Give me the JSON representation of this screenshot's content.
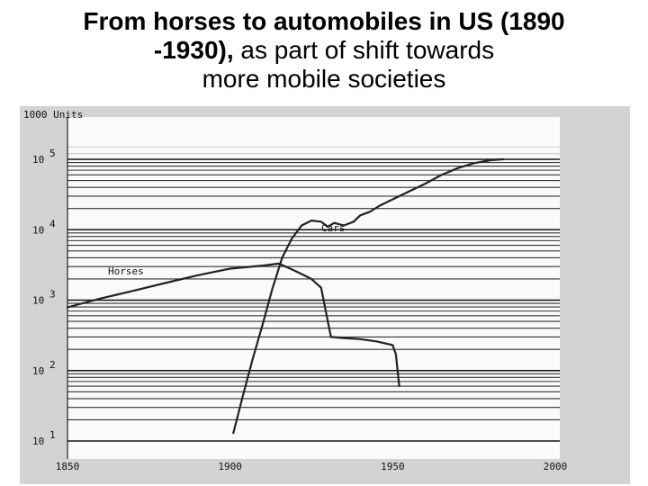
{
  "slide": {
    "title_bold_1": "From horses to automobiles in US (1890",
    "title_bold_2": "-1930),",
    "title_rest_2": " as part of shift towards",
    "title_line_3": "more mobile societies"
  },
  "chart_data": {
    "type": "line",
    "title": "",
    "xlabel": "",
    "ylabel": "1000 Units",
    "y_scale": "log",
    "xlim": [
      1850,
      2000
    ],
    "ylim": [
      10,
      100000
    ],
    "x_ticks": [
      "1850",
      "1900",
      "1950",
      "2000"
    ],
    "y_ticks": [
      {
        "base": "10",
        "exp": "1"
      },
      {
        "base": "10",
        "exp": "2"
      },
      {
        "base": "10",
        "exp": "3"
      },
      {
        "base": "10",
        "exp": "4"
      },
      {
        "base": "10",
        "exp": "5"
      }
    ],
    "grid": true,
    "series": [
      {
        "name": "Horses",
        "color": "#222222",
        "x": [
          1850,
          1860,
          1870,
          1880,
          1890,
          1900,
          1910,
          1915,
          1920,
          1925,
          1928,
          1931,
          1935,
          1940,
          1945,
          1950,
          1951,
          1952
        ],
        "y": [
          790,
          1050,
          1350,
          1750,
          2250,
          2800,
          3100,
          3300,
          2600,
          2000,
          1500,
          300,
          290,
          280,
          260,
          230,
          170,
          60
        ]
      },
      {
        "name": "Cars",
        "color": "#222222",
        "x": [
          1901,
          1904,
          1907,
          1910,
          1913,
          1916,
          1919,
          1922,
          1925,
          1928,
          1930,
          1932,
          1935,
          1938,
          1940,
          1943,
          1946,
          1950,
          1955,
          1960,
          1965,
          1970,
          1975,
          1980,
          1984
        ],
        "y": [
          13,
          45,
          150,
          450,
          1450,
          4000,
          7500,
          11500,
          13500,
          13000,
          11000,
          12500,
          11500,
          13000,
          16000,
          18000,
          22000,
          27000,
          35000,
          45000,
          60000,
          75000,
          88000,
          97000,
          100000
        ]
      }
    ]
  }
}
